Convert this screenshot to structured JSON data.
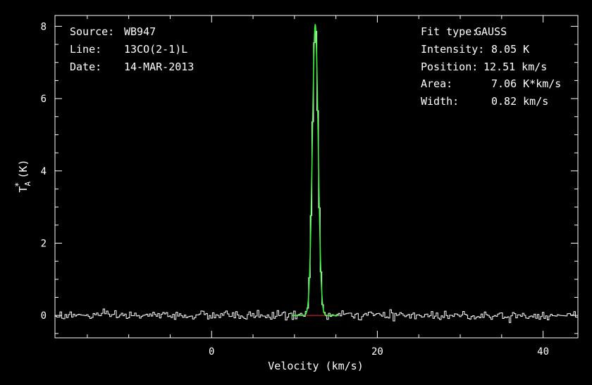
{
  "info_left": {
    "source_label": "Source:",
    "source_value": "WB947",
    "line_label": "Line:",
    "line_value": "13CO(2-1)L",
    "date_label": "Date:",
    "date_value": "14-MAR-2013"
  },
  "info_right": {
    "fit_type_label": "Fit type:",
    "fit_type_value": "GAUSS",
    "intensity_label": "Intensity:",
    "intensity_value": "8.05 K",
    "position_label": "Position:",
    "position_value": "12.51 km/s",
    "area_label": "Area:",
    "area_value": "7.06 K*km/s",
    "width_label": "Width:",
    "width_value": "0.82 km/s"
  },
  "colors": {
    "background": "#000000",
    "axes": "#ffffff",
    "spectrum": "#ffffff",
    "fit": "#33ff33",
    "baseline": "#ff2020"
  },
  "chart_data": {
    "type": "line",
    "xlabel": "Velocity (km/s)",
    "ylabel_main": "T",
    "ylabel_sup": "*",
    "ylabel_sub": "A",
    "ylabel_unit": "(K)",
    "xlim": [
      -18.9,
      44.2
    ],
    "ylim": [
      -0.62,
      8.3
    ],
    "x_ticks": [
      0,
      20,
      40
    ],
    "y_ticks": [
      0,
      2,
      4,
      6,
      8
    ],
    "grid": false,
    "series": [
      {
        "style": "histogram",
        "color": "#ffffff",
        "note": "observed spectrum: noise around 0 K with a single line",
        "noise_rms": 0.06,
        "x_step": 0.2
      },
      {
        "style": "line",
        "color": "#33ff33",
        "gaussian": {
          "amplitude": 8.05,
          "center": 12.51,
          "fwhm": 0.82,
          "area": 7.06
        }
      },
      {
        "style": "line",
        "color": "#ff2020",
        "baseline_range": [
          11.4,
          14.2
        ],
        "value": 0
      }
    ]
  }
}
